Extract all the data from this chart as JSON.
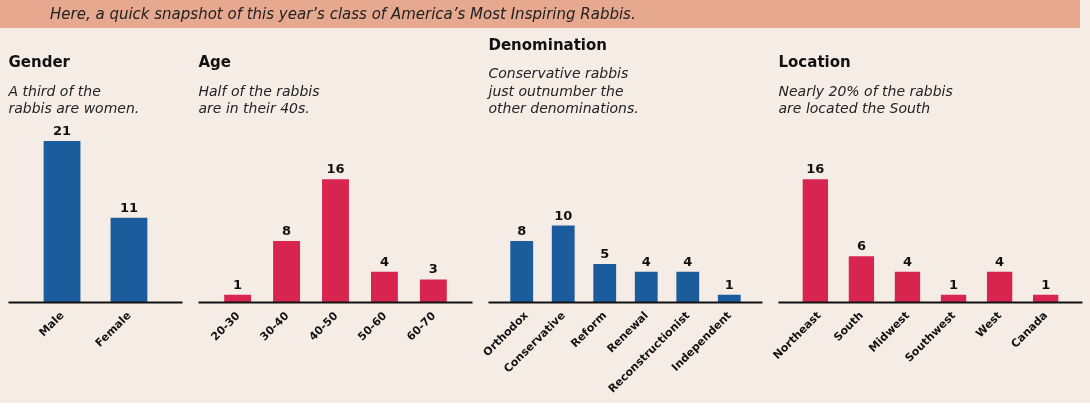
{
  "chart_data": [
    {
      "type": "bar",
      "title": "Gender",
      "subtitle": "A third of the rabbis are women.",
      "annotations": [
        "Here, a quick snapshot of this year’s class of America’s Most Inspiring Rabbis."
      ],
      "categories": [
        "Male",
        "Female"
      ],
      "values": [
        21,
        11
      ],
      "color": "#1b5c9c",
      "data_labels": true,
      "tick_labels": "x"
    },
    {
      "type": "bar",
      "title": "Age",
      "subtitle": "Half of the rabbis are in their 40s.",
      "categories": [
        "20-30",
        "30-40",
        "40-50",
        "50-60",
        "60-70"
      ],
      "values": [
        1,
        8,
        16,
        4,
        3
      ],
      "color": "#d8254f",
      "data_labels": true,
      "tick_labels": "x"
    },
    {
      "type": "bar",
      "title": "Denomination",
      "subtitle": "Conservative rabbis just outnumber the other denominations.",
      "categories": [
        "Orthodox",
        "Conservative",
        "Reform",
        "Renewal",
        "Reconstructionist",
        "Independent"
      ],
      "values": [
        8,
        10,
        5,
        4,
        4,
        1
      ],
      "color": "#1b5c9c",
      "data_labels": true,
      "tick_labels": "x"
    },
    {
      "type": "bar",
      "title": "Location",
      "subtitle": "Nearly 20% of the rabbis are located the South",
      "categories": [
        "Northeast",
        "South",
        "Midwest",
        "Southwest",
        "West",
        "Canada"
      ],
      "values": [
        16,
        6,
        4,
        1,
        4,
        1
      ],
      "color": "#d8254f",
      "data_labels": true,
      "tick_labels": "x"
    }
  ]
}
